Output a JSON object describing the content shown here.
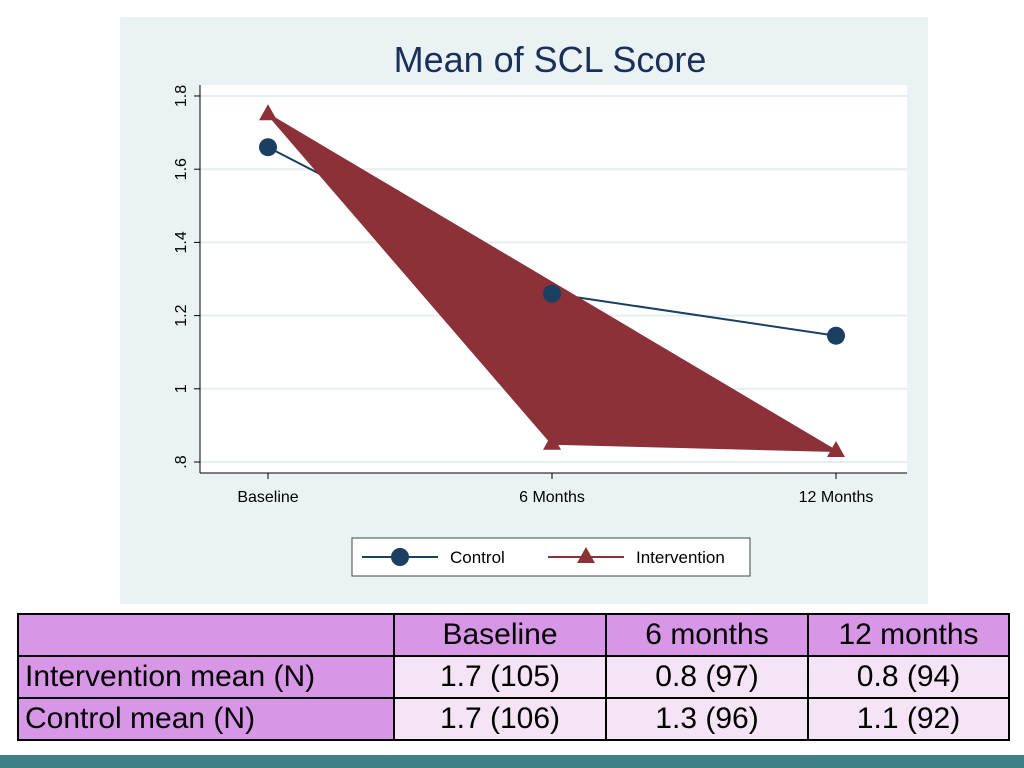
{
  "colors": {
    "panel_bg": "#eaf2f3",
    "plot_bg": "#ffffff",
    "control": "#1a3f63",
    "intervention": "#8b3137",
    "table_header": "#d896e6",
    "table_cell": "#f5e4f6",
    "footer": "#3f7f86"
  },
  "chart_data": {
    "type": "line",
    "title": "Mean of SCL Score",
    "xlabel": "",
    "ylabel": "",
    "categories": [
      "Baseline",
      "6 Months",
      "12 Months"
    ],
    "y_ticks": [
      0.8,
      1.0,
      1.2,
      1.4,
      1.6,
      1.8
    ],
    "y_tick_labels": [
      ".8",
      "1",
      "1.2",
      "1.4",
      "1.6",
      "1.8"
    ],
    "ylim": [
      0.77,
      1.83
    ],
    "grid": true,
    "legend_position": "bottom",
    "series": [
      {
        "name": "Control",
        "marker": "circle",
        "values": [
          1.66,
          1.26,
          1.145
        ]
      },
      {
        "name": "Intervention",
        "marker": "triangle",
        "values": [
          1.75,
          0.85,
          0.83
        ],
        "filled_area": true
      }
    ]
  },
  "table": {
    "headers": [
      "",
      "Baseline",
      "6 months",
      "12 months"
    ],
    "rows": [
      {
        "label": "Intervention mean (N)",
        "cells": [
          "1.7 (105)",
          "0.8 (97)",
          "0.8 (94)"
        ]
      },
      {
        "label": "Control mean (N)",
        "cells": [
          "1.7 (106)",
          "1.3 (96)",
          "1.1 (92)"
        ]
      }
    ]
  }
}
